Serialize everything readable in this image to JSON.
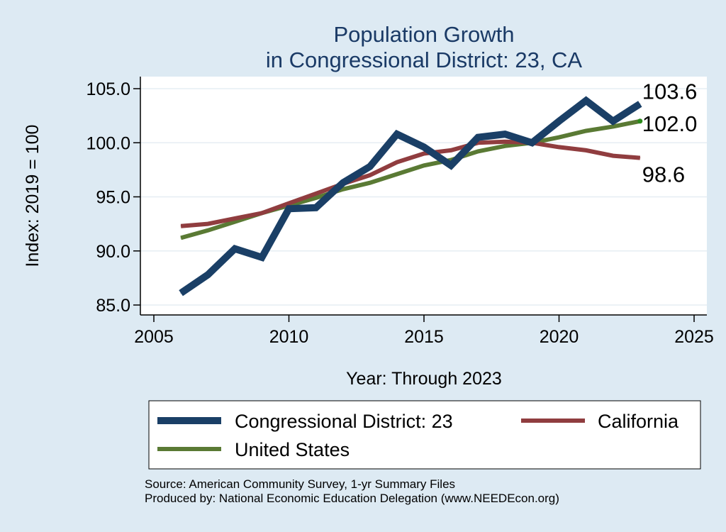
{
  "chart_data": {
    "type": "line",
    "title": [
      "Population Growth",
      "in Congressional District: 23, CA"
    ],
    "xlabel": "Year: Through 2023",
    "ylabel": "Index: 2019 = 100",
    "xlim": [
      2005,
      2025
    ],
    "ylim": [
      84.0,
      106.0
    ],
    "x_ticks": [
      2005,
      2010,
      2015,
      2020,
      2025
    ],
    "x_tick_labels": [
      "2005",
      "2010",
      "2015",
      "2020",
      "2025"
    ],
    "y_ticks": [
      85.0,
      90.0,
      95.0,
      100.0,
      105.0
    ],
    "y_tick_labels": [
      "85.0",
      "90.0",
      "95.0",
      "100.0",
      "105.0"
    ],
    "grid": "horizontal",
    "legend_position": "bottom",
    "x": [
      2006,
      2007,
      2008,
      2009,
      2010,
      2011,
      2012,
      2013,
      2014,
      2015,
      2016,
      2017,
      2018,
      2019,
      2020,
      2021,
      2022,
      2023
    ],
    "series": [
      {
        "name": "Congressional District: 23",
        "color": "#1a3f66",
        "width": "thick",
        "values": [
          86.1,
          87.8,
          90.2,
          89.4,
          93.9,
          94.0,
          96.3,
          97.8,
          100.8,
          99.6,
          97.9,
          100.5,
          100.8,
          100.0,
          102.0,
          103.9,
          102.0,
          103.6
        ],
        "end_label": "103.6"
      },
      {
        "name": "California",
        "color": "#903d3f",
        "width": "medium",
        "values": [
          92.3,
          92.5,
          93.0,
          93.5,
          94.4,
          95.3,
          96.2,
          97.0,
          98.2,
          99.0,
          99.3,
          100.0,
          100.1,
          100.0,
          99.6,
          99.3,
          98.8,
          98.6
        ],
        "end_label": "98.6"
      },
      {
        "name": "United States",
        "color": "#5a7a34",
        "width": "medium",
        "values": [
          91.2,
          91.9,
          92.7,
          93.5,
          94.2,
          94.9,
          95.7,
          96.3,
          97.1,
          97.9,
          98.4,
          99.2,
          99.7,
          100.0,
          100.5,
          101.1,
          101.5,
          102.0
        ],
        "end_label": "102.0"
      }
    ],
    "legend_order": [
      0,
      1,
      2
    ],
    "source_lines": [
      "Source: American Community Survey, 1-yr Summary Files",
      "Produced by: National Economic Education Delegation (www.NEEDEcon.org)"
    ]
  },
  "colors": {
    "background": "#ddeaf3",
    "plot_background": "#ffffff",
    "grid": "#e6edf3",
    "title": "#1a3a66",
    "us_end_marker": "#2a8a1a"
  }
}
